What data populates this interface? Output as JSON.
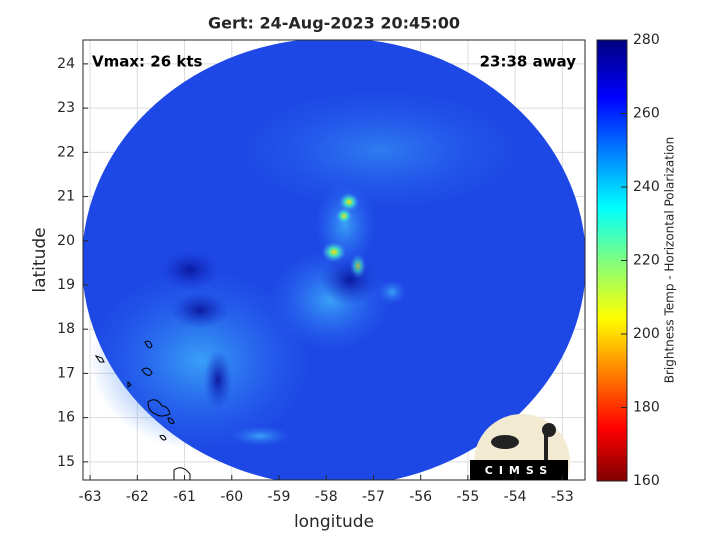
{
  "chart_data": {
    "type": "swath-map",
    "title": "Gert: 24-Aug-2023 20:45:00",
    "annotations": [
      "Vmax: 26 kts",
      "23:38 away"
    ],
    "xlabel": "longitude",
    "ylabel": "latitude",
    "xlim": [
      -63.15,
      -52.52
    ],
    "ylim": [
      14.59,
      24.54
    ],
    "xticks": [
      -63,
      -62,
      -61,
      -60,
      -59,
      -58,
      -57,
      -56,
      -55,
      -54,
      -53
    ],
    "yticks": [
      15,
      16,
      17,
      18,
      19,
      20,
      21,
      22,
      23,
      24
    ],
    "grid": true,
    "colorbar": {
      "label": "Brightness Temp - Horizontal Polarization",
      "lim": [
        160,
        280
      ],
      "ticks": [
        160,
        180,
        200,
        220,
        240,
        260,
        280
      ]
    },
    "logo": "CIMSS"
  }
}
